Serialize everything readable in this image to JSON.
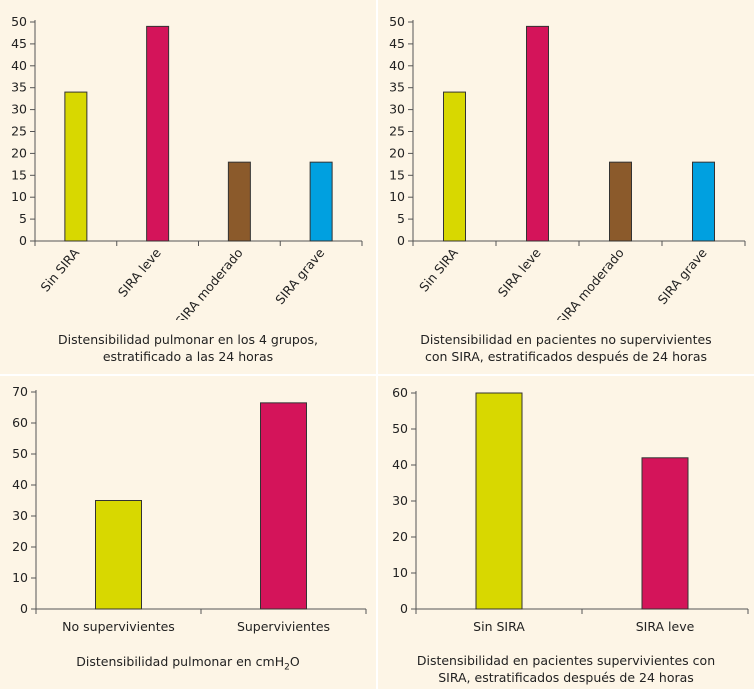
{
  "chart_data": [
    {
      "type": "bar",
      "categories": [
        "Sin SIRA",
        "SIRA leve",
        "SIRA moderado",
        "SIRA grave"
      ],
      "values": [
        34,
        49,
        18,
        18
      ],
      "colors": [
        "#d8d800",
        "#d4145a",
        "#8b5a2b",
        "#00a0e0"
      ],
      "ylim": [
        0,
        50
      ],
      "yticks": [
        0,
        5,
        10,
        15,
        20,
        25,
        30,
        35,
        40,
        45,
        50
      ],
      "xlabel_rotated": true,
      "caption_lines": [
        "Distensibilidad pulmonar en los 4 grupos,",
        "estratificado a las 24 horas"
      ]
    },
    {
      "type": "bar",
      "categories": [
        "Sin SIRA",
        "SIRA leve",
        "SIRA moderado",
        "SIRA grave"
      ],
      "values": [
        34,
        49,
        18,
        18
      ],
      "colors": [
        "#d8d800",
        "#d4145a",
        "#8b5a2b",
        "#00a0e0"
      ],
      "ylim": [
        0,
        50
      ],
      "yticks": [
        0,
        5,
        10,
        15,
        20,
        25,
        30,
        35,
        40,
        45,
        50
      ],
      "xlabel_rotated": true,
      "caption_lines": [
        "Distensibilidad en pacientes no supervivientes",
        "con SIRA, estratificados después de 24 horas"
      ]
    },
    {
      "type": "bar",
      "categories": [
        "No supervivientes",
        "Supervivientes"
      ],
      "values": [
        35,
        66.5
      ],
      "colors": [
        "#d8d800",
        "#d4145a"
      ],
      "ylim": [
        0,
        70
      ],
      "yticks": [
        0,
        10,
        20,
        30,
        40,
        50,
        60,
        70
      ],
      "xlabel_rotated": false,
      "caption_main": "Distensibilidad pulmonar en cmH",
      "caption_sub": "2",
      "caption_tail": "O"
    },
    {
      "type": "bar",
      "categories": [
        "Sin SIRA",
        "SIRA leve"
      ],
      "values": [
        60,
        42
      ],
      "colors": [
        "#d8d800",
        "#d4145a"
      ],
      "ylim": [
        0,
        60
      ],
      "yticks": [
        0,
        10,
        20,
        30,
        40,
        50,
        60
      ],
      "xlabel_rotated": false,
      "caption_lines": [
        "Distensibilidad en pacientes supervivientes con",
        "SIRA, estratificados después de 24 horas"
      ]
    }
  ]
}
